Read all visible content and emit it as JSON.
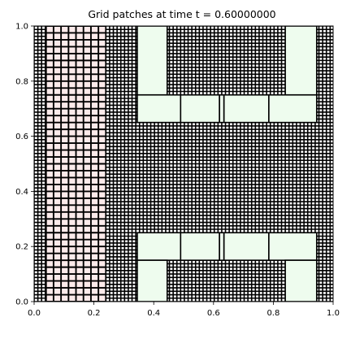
{
  "chart_data": {
    "type": "grid-patches",
    "title": "Grid patches at time t =     0.60000000",
    "xlim": [
      0,
      1
    ],
    "ylim": [
      0,
      1
    ],
    "xticks": [
      "0.0",
      "0.2",
      "0.4",
      "0.6",
      "0.8",
      "1.0"
    ],
    "yticks": [
      "0.0",
      "0.2",
      "0.4",
      "0.6",
      "0.8",
      "1.0"
    ],
    "grid": false,
    "colors": {
      "background_fine": "#000000",
      "grid_lines": "#000000",
      "pink_cells": "#fbeaea",
      "patch_fill": "#eefcee",
      "white_cells": "#ffffff"
    },
    "regions": [
      {
        "name": "fine-left-strip",
        "x": [
          0.0,
          0.04
        ],
        "y": [
          0,
          1
        ],
        "cell": 0.0125,
        "fill": "#ffffff"
      },
      {
        "name": "coarse-column",
        "x": [
          0.04,
          0.24
        ],
        "y": [
          0,
          1
        ],
        "cell": 0.025,
        "fill": "#fbeaea"
      },
      {
        "name": "fine-column",
        "x": [
          0.24,
          1.0
        ],
        "y": [
          0,
          1
        ],
        "cell": 0.0125,
        "fill": "#ffffff"
      }
    ],
    "patches": [
      {
        "x": [
          0.345,
          0.445
        ],
        "y": [
          0.75,
          1.0
        ]
      },
      {
        "x": [
          0.84,
          0.945
        ],
        "y": [
          0.75,
          1.0
        ]
      },
      {
        "x": [
          0.345,
          0.49
        ],
        "y": [
          0.65,
          0.75
        ]
      },
      {
        "x": [
          0.49,
          0.62
        ],
        "y": [
          0.65,
          0.75
        ]
      },
      {
        "x": [
          0.62,
          0.635
        ],
        "y": [
          0.65,
          0.75
        ]
      },
      {
        "x": [
          0.635,
          0.785
        ],
        "y": [
          0.65,
          0.75
        ]
      },
      {
        "x": [
          0.785,
          0.945
        ],
        "y": [
          0.65,
          0.75
        ]
      },
      {
        "x": [
          0.345,
          0.49
        ],
        "y": [
          0.15,
          0.25
        ]
      },
      {
        "x": [
          0.49,
          0.62
        ],
        "y": [
          0.15,
          0.25
        ]
      },
      {
        "x": [
          0.62,
          0.635
        ],
        "y": [
          0.15,
          0.25
        ]
      },
      {
        "x": [
          0.635,
          0.785
        ],
        "y": [
          0.15,
          0.25
        ]
      },
      {
        "x": [
          0.785,
          0.945
        ],
        "y": [
          0.15,
          0.25
        ]
      },
      {
        "x": [
          0.345,
          0.445
        ],
        "y": [
          0.0,
          0.15
        ]
      },
      {
        "x": [
          0.84,
          0.945
        ],
        "y": [
          0.0,
          0.15
        ]
      }
    ]
  }
}
